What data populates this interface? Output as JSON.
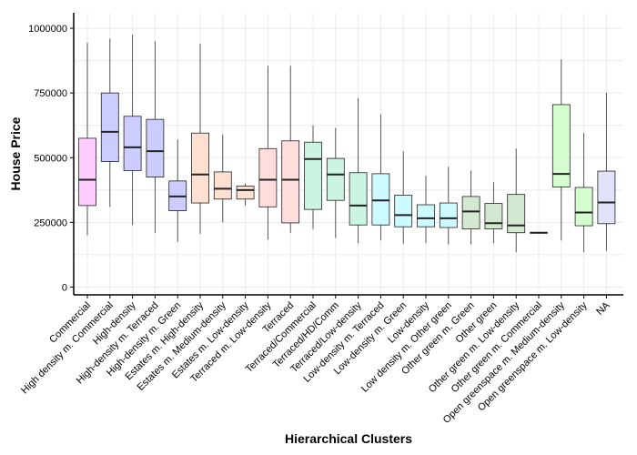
{
  "chart_data": {
    "type": "boxplot",
    "title": "",
    "xlabel": "Hierarchical Clusters",
    "ylabel": "House Price",
    "ylim": [
      -30000,
      1060000
    ],
    "y_ticks": [
      0,
      250000,
      500000,
      750000,
      1000000
    ],
    "y_tick_labels": [
      "0",
      "250000",
      "500000",
      "750000",
      "1000000"
    ],
    "grid": true,
    "legend": "none",
    "categories": [
      "Commercial",
      "High density m. Commercial",
      "High-density",
      "High-density m. Terraced",
      "High-density m. Green",
      "Estates m. High-density",
      "Estates m. Medium-density",
      "Estates m. Low-density",
      "Terraced m. Low-density",
      "Terraced",
      "Terraced/Commercial",
      "Terraced/HD/Comm",
      "Terraced/Low-density",
      "Low-density m. Terraced",
      "Low-density m. Green",
      "Low-density",
      "Low density m. Other green",
      "Other green m. Green",
      "Other green",
      "Other green m. Low-density",
      "Other green m. Commercial",
      "Open greenspace m. Medium-density",
      "Open greenspace m. Low-density",
      "NA"
    ],
    "boxes": [
      {
        "min": 200000,
        "q1": 315000,
        "median": 415000,
        "q3": 575000,
        "max": 945000,
        "color": "#ffccff"
      },
      {
        "min": 310000,
        "q1": 485000,
        "median": 600000,
        "q3": 750000,
        "max": 960000,
        "color": "#ccccff"
      },
      {
        "min": 240000,
        "q1": 450000,
        "median": 540000,
        "q3": 660000,
        "max": 975000,
        "color": "#ccccff"
      },
      {
        "min": 210000,
        "q1": 425000,
        "median": 525000,
        "q3": 648000,
        "max": 950000,
        "color": "#ccccff"
      },
      {
        "min": 175000,
        "q1": 295000,
        "median": 350000,
        "q3": 410000,
        "max": 570000,
        "color": "#ccccff"
      },
      {
        "min": 205000,
        "q1": 325000,
        "median": 435000,
        "q3": 595000,
        "max": 940000,
        "color": "#fde0cf"
      },
      {
        "min": 250000,
        "q1": 340000,
        "median": 380000,
        "q3": 445000,
        "max": 590000,
        "color": "#fde0cf"
      },
      {
        "min": 315000,
        "q1": 340000,
        "median": 375000,
        "q3": 390000,
        "max": 400000,
        "color": "#fde0cf"
      },
      {
        "min": 185000,
        "q1": 310000,
        "median": 415000,
        "q3": 535000,
        "max": 855000,
        "color": "#ffdddd"
      },
      {
        "min": 210000,
        "q1": 248000,
        "median": 415000,
        "q3": 565000,
        "max": 855000,
        "color": "#ffdddd"
      },
      {
        "min": 225000,
        "q1": 300000,
        "median": 495000,
        "q3": 560000,
        "max": 625000,
        "color": "#ccf5e1"
      },
      {
        "min": 190000,
        "q1": 335000,
        "median": 435000,
        "q3": 497000,
        "max": 615000,
        "color": "#ccf5e1"
      },
      {
        "min": 170000,
        "q1": 240000,
        "median": 315000,
        "q3": 442000,
        "max": 730000,
        "color": "#ccf5e1"
      },
      {
        "min": 180000,
        "q1": 240000,
        "median": 335000,
        "q3": 438000,
        "max": 668000,
        "color": "#ccfaff"
      },
      {
        "min": 168000,
        "q1": 233000,
        "median": 278000,
        "q3": 355000,
        "max": 525000,
        "color": "#ccfaff"
      },
      {
        "min": 170000,
        "q1": 233000,
        "median": 266000,
        "q3": 318000,
        "max": 430000,
        "color": "#ccfaff"
      },
      {
        "min": 165000,
        "q1": 230000,
        "median": 266000,
        "q3": 325000,
        "max": 465000,
        "color": "#ccfaff"
      },
      {
        "min": 165000,
        "q1": 225000,
        "median": 292000,
        "q3": 350000,
        "max": 450000,
        "color": "#d3e8d0"
      },
      {
        "min": 170000,
        "q1": 225000,
        "median": 247000,
        "q3": 323000,
        "max": 405000,
        "color": "#d3e8d0"
      },
      {
        "min": 135000,
        "q1": 210000,
        "median": 238000,
        "q3": 358000,
        "max": 535000,
        "color": "#d3e8d0"
      },
      {
        "min": 210000,
        "q1": 210000,
        "median": 210000,
        "q3": 210000,
        "max": 210000,
        "color": "#d3e8d0"
      },
      {
        "min": 180000,
        "q1": 387000,
        "median": 437000,
        "q3": 705000,
        "max": 880000,
        "color": "#d6fdd0"
      },
      {
        "min": 135000,
        "q1": 237000,
        "median": 288000,
        "q3": 385000,
        "max": 595000,
        "color": "#d6fdd0"
      },
      {
        "min": 140000,
        "q1": 245000,
        "median": 327000,
        "q3": 448000,
        "max": 750000,
        "color": "#e2e2f9"
      }
    ]
  }
}
